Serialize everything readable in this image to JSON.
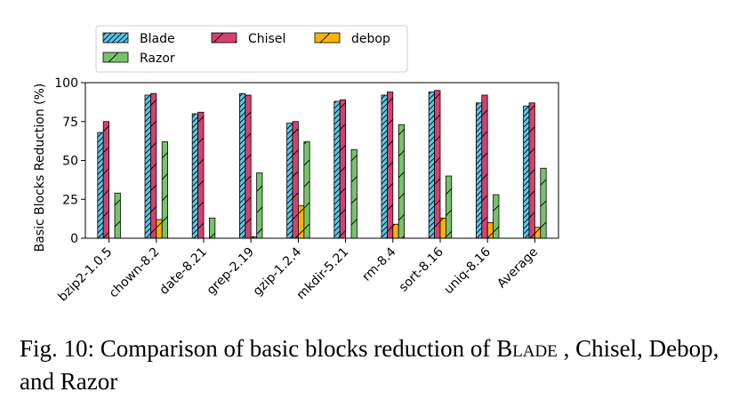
{
  "chart_data": {
    "type": "bar",
    "title": "",
    "xlabel": "",
    "ylabel": "Basic Blocks Reduction (%)",
    "ylim": [
      0,
      100
    ],
    "yticks": [
      "0",
      "25",
      "50",
      "75",
      "100"
    ],
    "grid": false,
    "legend_position": "top",
    "categories": [
      "bzip2-1.0.5",
      "chown-8.2",
      "date-8.21",
      "grep-2.19",
      "gzip-1.2.4",
      "mkdir-5.21",
      "rm-8.4",
      "sort-8.16",
      "uniq-8.16",
      "Average"
    ],
    "series": [
      {
        "name": "Blade",
        "color": "#5bc5e8",
        "hatch": "diagonal-dense",
        "values": [
          68,
          92,
          80,
          93,
          74,
          88,
          92,
          94,
          87,
          85
        ]
      },
      {
        "name": "Chisel",
        "color": "#d6406a",
        "hatch": "diagonal-sparse",
        "values": [
          75,
          93,
          81,
          92,
          75,
          89,
          94,
          95,
          92,
          87
        ]
      },
      {
        "name": "debop",
        "color": "#f5b400",
        "hatch": "diagonal-sparse",
        "values": [
          0,
          12,
          0,
          1,
          21,
          0,
          9,
          13,
          10,
          7
        ]
      },
      {
        "name": "Razor",
        "color": "#77c26a",
        "hatch": "diagonal-sparse",
        "values": [
          29,
          62,
          13,
          42,
          62,
          57,
          73,
          40,
          28,
          45
        ]
      }
    ]
  },
  "caption": {
    "prefix": "Fig. 10: Comparison of basic blocks reduction of ",
    "blade": "Blade",
    "suffix": " , Chisel, Debop, and Razor"
  }
}
